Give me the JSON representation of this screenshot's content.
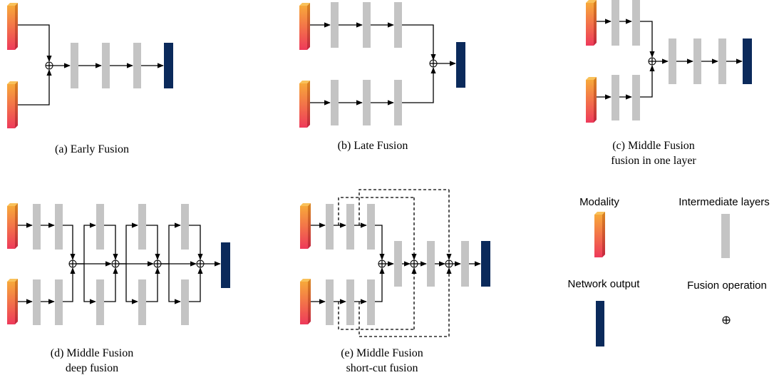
{
  "captions": {
    "a": [
      "(a) Early Fusion"
    ],
    "b": [
      "(b) Late Fusion"
    ],
    "c": [
      "(c) Middle Fusion",
      "fusion in one layer"
    ],
    "d": [
      "(d) Middle Fusion",
      "deep fusion"
    ],
    "e": [
      "(e) Middle Fusion",
      "short-cut fusion"
    ]
  },
  "legend": {
    "modality": "Modality",
    "intermediate": "Intermediate layers",
    "output": "Network output",
    "fusion": "Fusion operation"
  },
  "colors": {
    "layer": "#c4c4c4",
    "output": "#0b2a5b",
    "modality_top": "#f7a83a",
    "modality_bottom": "#ee3a5a",
    "line": "#000000"
  },
  "icons": {
    "modality": "modality-bar-icon",
    "intermediate": "intermediate-layer-icon",
    "output": "network-output-icon",
    "fusion": "circled-plus-icon"
  }
}
